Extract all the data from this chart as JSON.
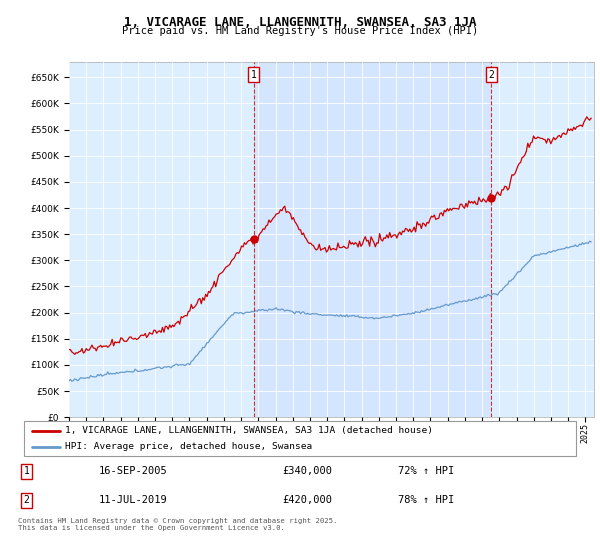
{
  "title": "1, VICARAGE LANE, LLANGENNITH, SWANSEA, SA3 1JA",
  "subtitle": "Price paid vs. HM Land Registry's House Price Index (HPI)",
  "legend_line1": "1, VICARAGE LANE, LLANGENNITH, SWANSEA, SA3 1JA (detached house)",
  "legend_line2": "HPI: Average price, detached house, Swansea",
  "footer": "Contains HM Land Registry data © Crown copyright and database right 2025.\nThis data is licensed under the Open Government Licence v3.0.",
  "marker1_date": "16-SEP-2005",
  "marker1_price": "£340,000",
  "marker1_hpi": "72% ↑ HPI",
  "marker1_year": 2005.72,
  "marker2_date": "11-JUL-2019",
  "marker2_price": "£420,000",
  "marker2_hpi": "78% ↑ HPI",
  "marker2_year": 2019.53,
  "red_color": "#cc0000",
  "blue_color": "#6699cc",
  "bg_color": "#ddeeff",
  "ylim_min": 0,
  "ylim_max": 680000,
  "xlim_min": 1995.0,
  "xlim_max": 2025.5
}
